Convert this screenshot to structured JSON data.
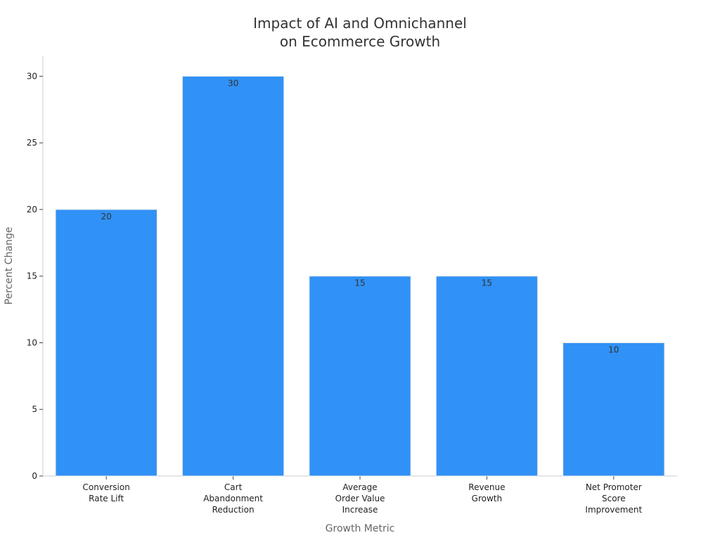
{
  "chart_data": {
    "type": "bar",
    "title": [
      "Impact of AI and Omnichannel",
      "on Ecommerce Growth"
    ],
    "xlabel": "Growth Metric",
    "ylabel": "Percent Change",
    "categories": [
      [
        "Conversion",
        "Rate Lift"
      ],
      [
        "Cart",
        "Abandonment",
        "Reduction"
      ],
      [
        "Average",
        "Order Value",
        "Increase"
      ],
      [
        "Revenue",
        "Growth"
      ],
      [
        "Net Promoter",
        "Score",
        "Improvement"
      ]
    ],
    "values": [
      20,
      30,
      15,
      15,
      10
    ],
    "ylim": [
      0,
      31.5
    ],
    "yticks": [
      0,
      5,
      10,
      15,
      20,
      25,
      30
    ],
    "grid": false,
    "legend": "none",
    "colors": {
      "bar": "#3091f6",
      "axis": "#cccccc",
      "text": "#333333"
    }
  }
}
